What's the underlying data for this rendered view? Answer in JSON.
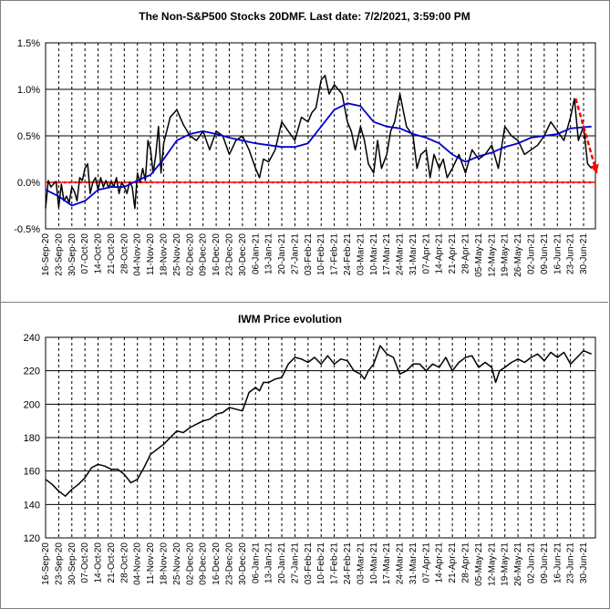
{
  "chart_data": [
    {
      "type": "line",
      "title": "The Non-S&P500 Stocks 20DMF. Last date: 7/2/2021, 3:59:00 PM",
      "ylim": [
        -0.5,
        1.5
      ],
      "yticks": [
        "-0.5%",
        "0.0%",
        "0.5%",
        "1.0%",
        "1.5%"
      ],
      "ytick_values": [
        -0.5,
        0,
        0.5,
        1.0,
        1.5
      ],
      "xticks": [
        "16-Sep-20",
        "23-Sep-20",
        "30-Sep-20",
        "07-Oct-20",
        "14-Oct-20",
        "21-Oct-20",
        "28-Oct-20",
        "04-Nov-20",
        "11-Nov-20",
        "18-Nov-20",
        "25-Nov-20",
        "02-Dec-20",
        "09-Dec-20",
        "16-Dec-20",
        "23-Dec-20",
        "30-Dec-20",
        "06-Jan-21",
        "13-Jan-21",
        "20-Jan-21",
        "27-Jan-21",
        "03-Feb-21",
        "10-Feb-21",
        "17-Feb-21",
        "24-Feb-21",
        "03-Mar-21",
        "10-Mar-21",
        "17-Mar-21",
        "24-Mar-21",
        "31-Mar-21",
        "07-Apr-21",
        "14-Apr-21",
        "21-Apr-21",
        "28-Apr-21",
        "05-May-21",
        "12-May-21",
        "19-May-21",
        "26-May-21",
        "02-Jun-21",
        "09-Jun-21",
        "16-Jun-21",
        "23-Jun-21",
        "30-Jun-21"
      ],
      "grid": true,
      "series": [
        {
          "color": "#000000",
          "x": [
            0,
            0.2,
            0.4,
            0.6,
            0.8,
            1.0,
            1.2,
            1.4,
            1.6,
            1.8,
            2.0,
            2.2,
            2.4,
            2.6,
            2.8,
            3.0,
            3.2,
            3.4,
            3.6,
            3.8,
            4.0,
            4.2,
            4.4,
            4.6,
            4.8,
            5.0,
            5.2,
            5.4,
            5.6,
            5.8,
            6.0,
            6.2,
            6.4,
            6.6,
            6.8,
            7.0,
            7.2,
            7.4,
            7.6,
            7.8,
            8.0,
            8.2,
            8.4,
            8.6,
            8.8,
            9.0,
            9.5,
            10.0,
            10.5,
            11.0,
            11.5,
            12.0,
            12.5,
            13.0,
            13.5,
            14.0,
            14.5,
            15.0,
            15.5,
            16.0,
            16.3,
            16.6,
            17.0,
            17.5,
            18.0,
            18.5,
            19.0,
            19.5,
            20.0,
            20.3,
            20.6,
            21.0,
            21.3,
            21.6,
            22.0,
            22.3,
            22.6,
            23.0,
            23.3,
            23.6,
            24.0,
            24.3,
            24.6,
            25.0,
            25.3,
            25.6,
            26.0,
            26.3,
            26.6,
            27.0,
            27.5,
            28.0,
            28.3,
            28.6,
            29.0,
            29.3,
            29.6,
            30.0,
            30.3,
            30.6,
            31.0,
            31.5,
            32.0,
            32.5,
            33.0,
            33.5,
            34.0,
            34.5,
            35.0,
            35.5,
            36.0,
            36.5,
            37.0,
            37.5,
            38.0,
            38.5,
            39.0,
            39.5,
            40.0,
            40.3,
            40.6,
            41.0,
            41.3,
            41.6
          ],
          "values": [
            -0.28,
            0.02,
            -0.05,
            -0.02,
            0.01,
            -0.27,
            -0.02,
            -0.2,
            -0.15,
            -0.22,
            -0.05,
            -0.1,
            -0.2,
            0.05,
            0.02,
            0.15,
            0.2,
            -0.12,
            0.0,
            0.05,
            -0.08,
            0.05,
            -0.05,
            0.02,
            -0.06,
            0.01,
            -0.05,
            0.05,
            -0.12,
            0.0,
            -0.05,
            -0.12,
            0.0,
            -0.05,
            -0.28,
            0.1,
            0.0,
            0.15,
            0.02,
            0.45,
            0.35,
            0.1,
            0.3,
            0.6,
            0.1,
            0.42,
            0.7,
            0.78,
            0.62,
            0.5,
            0.45,
            0.55,
            0.35,
            0.55,
            0.5,
            0.3,
            0.45,
            0.5,
            0.35,
            0.15,
            0.05,
            0.25,
            0.22,
            0.35,
            0.65,
            0.55,
            0.45,
            0.7,
            0.65,
            0.75,
            0.8,
            1.1,
            1.15,
            0.95,
            1.05,
            1.0,
            0.95,
            0.65,
            0.55,
            0.35,
            0.6,
            0.45,
            0.2,
            0.1,
            0.45,
            0.15,
            0.3,
            0.55,
            0.65,
            0.95,
            0.6,
            0.5,
            0.15,
            0.3,
            0.35,
            0.05,
            0.3,
            0.15,
            0.25,
            0.05,
            0.15,
            0.3,
            0.1,
            0.35,
            0.25,
            0.3,
            0.4,
            0.15,
            0.6,
            0.5,
            0.45,
            0.3,
            0.35,
            0.4,
            0.5,
            0.65,
            0.55,
            0.45,
            0.7,
            0.9,
            0.45,
            0.6,
            0.2,
            0.15
          ]
        },
        {
          "color": "#0000cc",
          "x": [
            0,
            1,
            2,
            3,
            4,
            5,
            6,
            7,
            8,
            9,
            10,
            11,
            12,
            13,
            14,
            15,
            16,
            17,
            18,
            19,
            20,
            21,
            22,
            23,
            24,
            25,
            26,
            27,
            28,
            29,
            30,
            31,
            32,
            33,
            34,
            35,
            36,
            37,
            38,
            39,
            40,
            41.6
          ],
          "values": [
            -0.08,
            -0.15,
            -0.25,
            -0.2,
            -0.08,
            -0.05,
            -0.05,
            0.02,
            0.08,
            0.25,
            0.45,
            0.52,
            0.55,
            0.52,
            0.48,
            0.45,
            0.42,
            0.4,
            0.38,
            0.38,
            0.42,
            0.6,
            0.78,
            0.85,
            0.82,
            0.65,
            0.6,
            0.58,
            0.52,
            0.48,
            0.42,
            0.3,
            0.22,
            0.28,
            0.32,
            0.38,
            0.42,
            0.48,
            0.5,
            0.52,
            0.58,
            0.6
          ]
        }
      ],
      "trend_arrow": {
        "color": "#ff0000",
        "from": [
          40.4,
          0.9
        ],
        "to": [
          42.0,
          0.1
        ]
      },
      "zero_line_color": "#ff0000"
    },
    {
      "type": "line",
      "title": "IWM Price evolution",
      "ylim": [
        120,
        240
      ],
      "yticks": [
        "120",
        "140",
        "160",
        "180",
        "200",
        "220",
        "240"
      ],
      "ytick_values": [
        120,
        140,
        160,
        180,
        200,
        220,
        240
      ],
      "xticks": [
        "16-Sep-20",
        "23-Sep-20",
        "30-Sep-20",
        "07-Oct-20",
        "14-Oct-20",
        "21-Oct-20",
        "28-Oct-20",
        "04-Nov-20",
        "11-Nov-20",
        "18-Nov-20",
        "25-Nov-20",
        "02-Dec-20",
        "09-Dec-20",
        "16-Dec-20",
        "23-Dec-20",
        "30-Dec-20",
        "06-Jan-21",
        "13-Jan-21",
        "20-Jan-21",
        "27-Jan-21",
        "03-Feb-21",
        "10-Feb-21",
        "17-Feb-21",
        "24-Feb-21",
        "03-Mar-21",
        "10-Mar-21",
        "17-Mar-21",
        "24-Mar-21",
        "31-Mar-21",
        "07-Apr-21",
        "14-Apr-21",
        "21-Apr-21",
        "28-Apr-21",
        "05-May-21",
        "12-May-21",
        "19-May-21",
        "26-May-21",
        "02-Jun-21",
        "09-Jun-21",
        "16-Jun-21",
        "23-Jun-21",
        "30-Jun-21"
      ],
      "grid": true,
      "series": [
        {
          "color": "#000000",
          "x": [
            0,
            0.5,
            1,
            1.5,
            2,
            2.5,
            3,
            3.5,
            4,
            4.5,
            5,
            5.5,
            6,
            6.5,
            7,
            7.5,
            8,
            8.5,
            9,
            9.5,
            10,
            10.5,
            11,
            11.5,
            12,
            12.5,
            13,
            13.5,
            14,
            14.5,
            15,
            15.5,
            16,
            16.3,
            16.6,
            17,
            17.5,
            18,
            18.5,
            19,
            19.5,
            20,
            20.5,
            21,
            21.5,
            22,
            22.5,
            23,
            23.5,
            24,
            24.3,
            24.6,
            25,
            25.5,
            26,
            26.5,
            27,
            27.5,
            28,
            28.5,
            29,
            29.5,
            30,
            30.5,
            31,
            31.5,
            32,
            32.5,
            33,
            33.5,
            34,
            34.3,
            34.6,
            35,
            35.5,
            36,
            36.5,
            37,
            37.5,
            38,
            38.5,
            39,
            39.5,
            40,
            40.5,
            41,
            41.6
          ],
          "values": [
            155,
            152,
            148,
            145,
            149,
            152,
            156,
            162,
            164,
            163,
            161,
            161,
            158,
            153,
            155,
            162,
            170,
            173,
            176,
            180,
            184,
            183,
            186,
            188,
            190,
            191,
            194,
            195,
            198,
            197,
            196,
            207,
            210,
            208,
            213,
            213,
            215,
            216,
            224,
            228,
            227,
            225,
            228,
            224,
            229,
            224,
            227,
            226,
            220,
            218,
            215,
            220,
            224,
            235,
            230,
            228,
            218,
            220,
            224,
            224,
            220,
            224,
            222,
            228,
            220,
            225,
            228,
            229,
            222,
            225,
            222,
            213,
            220,
            222,
            225,
            227,
            225,
            228,
            230,
            226,
            231,
            228,
            231,
            224,
            228,
            232,
            230
          ]
        }
      ]
    }
  ]
}
